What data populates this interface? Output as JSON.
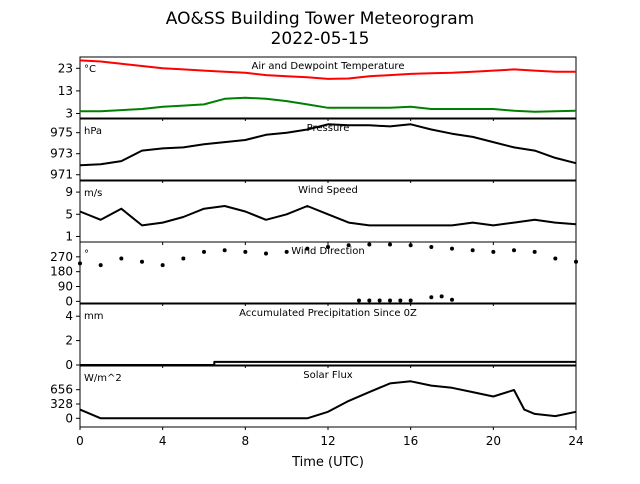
{
  "title": "AO&SS Building Tower Meteorogram",
  "subtitle": "2022-05-15",
  "xlabel": "Time (UTC)",
  "x_ticks": [
    0,
    4,
    8,
    12,
    16,
    20,
    24
  ],
  "xlim": [
    0,
    24
  ],
  "chart_data": [
    {
      "type": "line",
      "title": "Air and Dewpoint Temperature",
      "unit": "°C",
      "ylim": [
        1,
        28
      ],
      "y_ticks": [
        3,
        13,
        23
      ],
      "x": [
        0,
        1,
        2,
        3,
        4,
        5,
        6,
        7,
        8,
        9,
        10,
        11,
        12,
        13,
        14,
        15,
        16,
        17,
        18,
        19,
        20,
        21,
        22,
        23,
        24
      ],
      "series": [
        {
          "color": "#ff0000",
          "values": [
            26.5,
            26,
            25,
            24,
            23,
            22.5,
            22,
            21.5,
            21,
            20,
            19.5,
            19,
            18.3,
            18.5,
            19.5,
            20,
            20.5,
            20.8,
            21,
            21.5,
            22,
            22.5,
            22,
            21.5,
            21.5
          ]
        },
        {
          "color": "#008000",
          "values": [
            4,
            4,
            4.5,
            5,
            6,
            6.5,
            7,
            9.5,
            10,
            9.5,
            8.5,
            7,
            5.5,
            5.5,
            5.5,
            5.5,
            6,
            5,
            5,
            5,
            5,
            4.2,
            3.8,
            4,
            4.2
          ]
        }
      ]
    },
    {
      "type": "line",
      "title": "Pressure",
      "unit": "hPa",
      "ylim": [
        970.5,
        976.3
      ],
      "y_ticks": [
        971,
        973,
        975
      ],
      "x": [
        0,
        1,
        2,
        3,
        4,
        5,
        6,
        7,
        8,
        9,
        10,
        11,
        12,
        13,
        14,
        15,
        16,
        17,
        18,
        19,
        20,
        21,
        22,
        23,
        24
      ],
      "series": [
        {
          "color": "#000000",
          "values": [
            971.9,
            972,
            972.3,
            973.3,
            973.5,
            973.6,
            973.9,
            974.1,
            974.3,
            974.8,
            975,
            975.3,
            975.8,
            975.7,
            975.7,
            975.6,
            975.8,
            975.3,
            974.9,
            974.6,
            974.1,
            973.6,
            973.3,
            972.6,
            972.1
          ]
        }
      ]
    },
    {
      "type": "line",
      "title": "Wind Speed",
      "unit": "m/s",
      "ylim": [
        0,
        11
      ],
      "y_ticks": [
        1,
        5,
        9
      ],
      "x": [
        0,
        1,
        2,
        3,
        4,
        5,
        6,
        7,
        8,
        9,
        10,
        11,
        12,
        13,
        14,
        15,
        16,
        17,
        18,
        19,
        20,
        21,
        22,
        23,
        24
      ],
      "series": [
        {
          "color": "#000000",
          "values": [
            5.5,
            4,
            6,
            3,
            3.5,
            4.5,
            6,
            6.5,
            5.5,
            4,
            5,
            6.5,
            5,
            3.5,
            3,
            3,
            3,
            3,
            3,
            3.5,
            3,
            3.5,
            4,
            3.5,
            3.2
          ]
        }
      ]
    },
    {
      "type": "scatter",
      "title": "Wind Direction",
      "unit": "°",
      "ylim": [
        -10,
        360
      ],
      "y_ticks": [
        0,
        90,
        180,
        270
      ],
      "x": [
        0,
        1,
        2,
        3,
        4,
        5,
        6,
        7,
        8,
        9,
        10,
        11,
        12,
        13,
        14,
        15,
        16,
        17,
        18,
        19,
        20,
        21,
        22,
        23,
        24
      ],
      "series": [
        {
          "color": "#000000",
          "values": [
            230,
            220,
            260,
            240,
            220,
            260,
            300,
            310,
            300,
            290,
            300,
            320,
            330,
            340,
            345,
            345,
            340,
            330,
            320,
            310,
            300,
            310,
            300,
            260,
            240
          ]
        },
        {
          "color": "#000000",
          "x": [
            13.5,
            14,
            14.5,
            15,
            15.5,
            16,
            17,
            17.5,
            18
          ],
          "values": [
            5,
            5,
            5,
            5,
            5,
            5,
            25,
            30,
            10
          ]
        }
      ]
    },
    {
      "type": "line",
      "title": "Accumulated Precipitation Since 0Z",
      "unit": "mm",
      "ylim": [
        0,
        5
      ],
      "y_ticks": [
        0,
        2,
        4
      ],
      "x": [
        0,
        6.5,
        6.5,
        24
      ],
      "series": [
        {
          "color": "#000000",
          "values": [
            0,
            0,
            0.25,
            0.25
          ]
        }
      ]
    },
    {
      "type": "line",
      "title": "Solar Flux",
      "unit": "W/m^2",
      "ylim": [
        -200,
        1200
      ],
      "y_ticks": [
        0,
        328,
        656
      ],
      "x": [
        0,
        1,
        2,
        3,
        4,
        5,
        6,
        7,
        8,
        9,
        10,
        11,
        12,
        13,
        14,
        15,
        16,
        17,
        18,
        19,
        20,
        21,
        21.5,
        22,
        23,
        24
      ],
      "series": [
        {
          "color": "#000000",
          "values": [
            200,
            0,
            0,
            0,
            0,
            0,
            0,
            0,
            0,
            0,
            0,
            0,
            150,
            400,
            600,
            800,
            850,
            750,
            700,
            600,
            500,
            650,
            200,
            100,
            50,
            150
          ]
        }
      ]
    }
  ]
}
